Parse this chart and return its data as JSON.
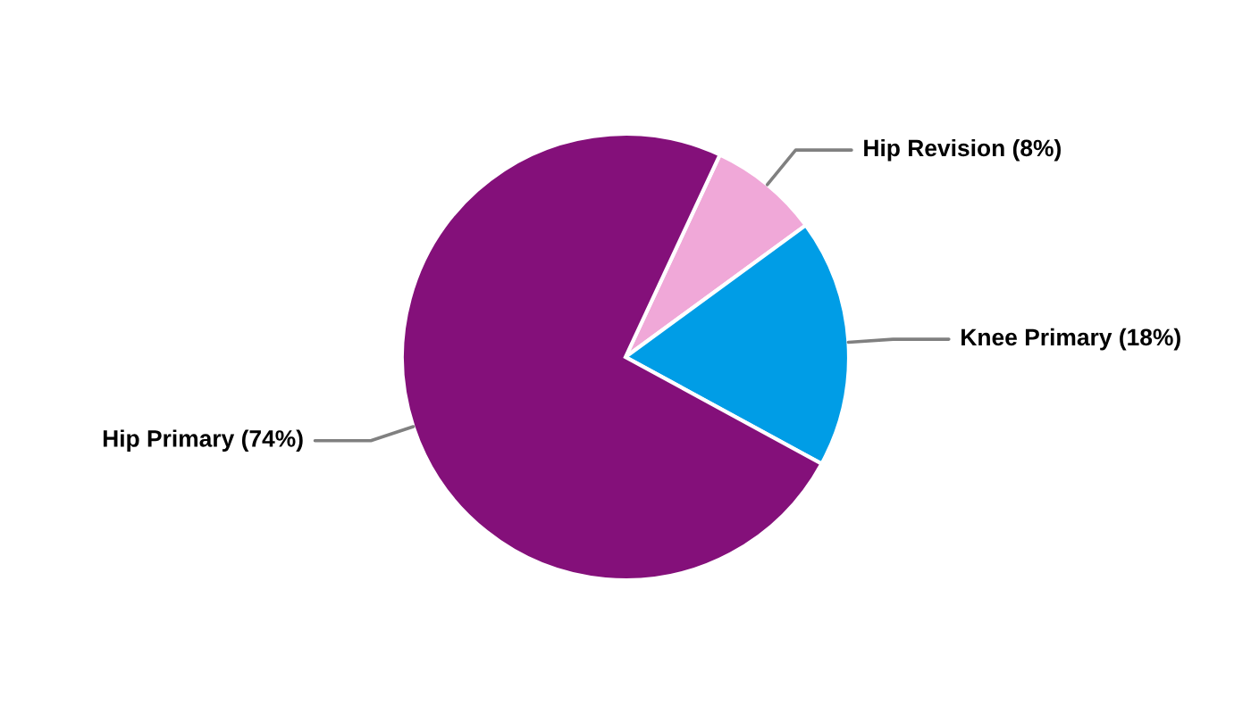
{
  "chart_data": {
    "type": "pie",
    "categories": [
      "Hip Revision",
      "Knee Primary",
      "Hip Primary"
    ],
    "values": [
      8,
      18,
      74
    ],
    "value_labels": [
      "(8%)",
      "(18%)",
      "(74%)"
    ],
    "colors": [
      "#f0a8d8",
      "#009de6",
      "#84107a"
    ],
    "legend": false
  }
}
